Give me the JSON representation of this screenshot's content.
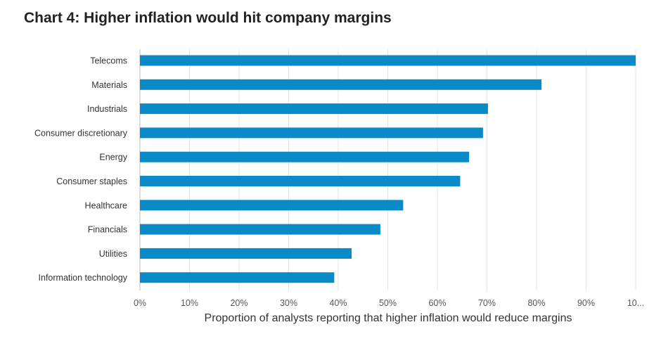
{
  "chart_data": {
    "type": "bar",
    "orientation": "horizontal",
    "title": "Chart 4: Higher inflation would hit company margins",
    "xlabel": "Proportion of analysts reporting that higher inflation would reduce margins",
    "ylabel": "",
    "categories": [
      "Telecoms",
      "Materials",
      "Industrials",
      "Consumer discretionary",
      "Energy",
      "Consumer staples",
      "Healthcare",
      "Financials",
      "Utilities",
      "Information technology"
    ],
    "values": [
      100,
      81,
      70.2,
      69.2,
      66.4,
      64.6,
      53.1,
      48.5,
      42.7,
      39.2
    ],
    "xlim": [
      0,
      100
    ],
    "x_ticks": [
      "0%",
      "10%",
      "20%",
      "30%",
      "40%",
      "50%",
      "60%",
      "70%",
      "80%",
      "90%",
      "10..."
    ],
    "grid": "vertical",
    "bar_color": "#0a8ac6",
    "legend": "none"
  }
}
